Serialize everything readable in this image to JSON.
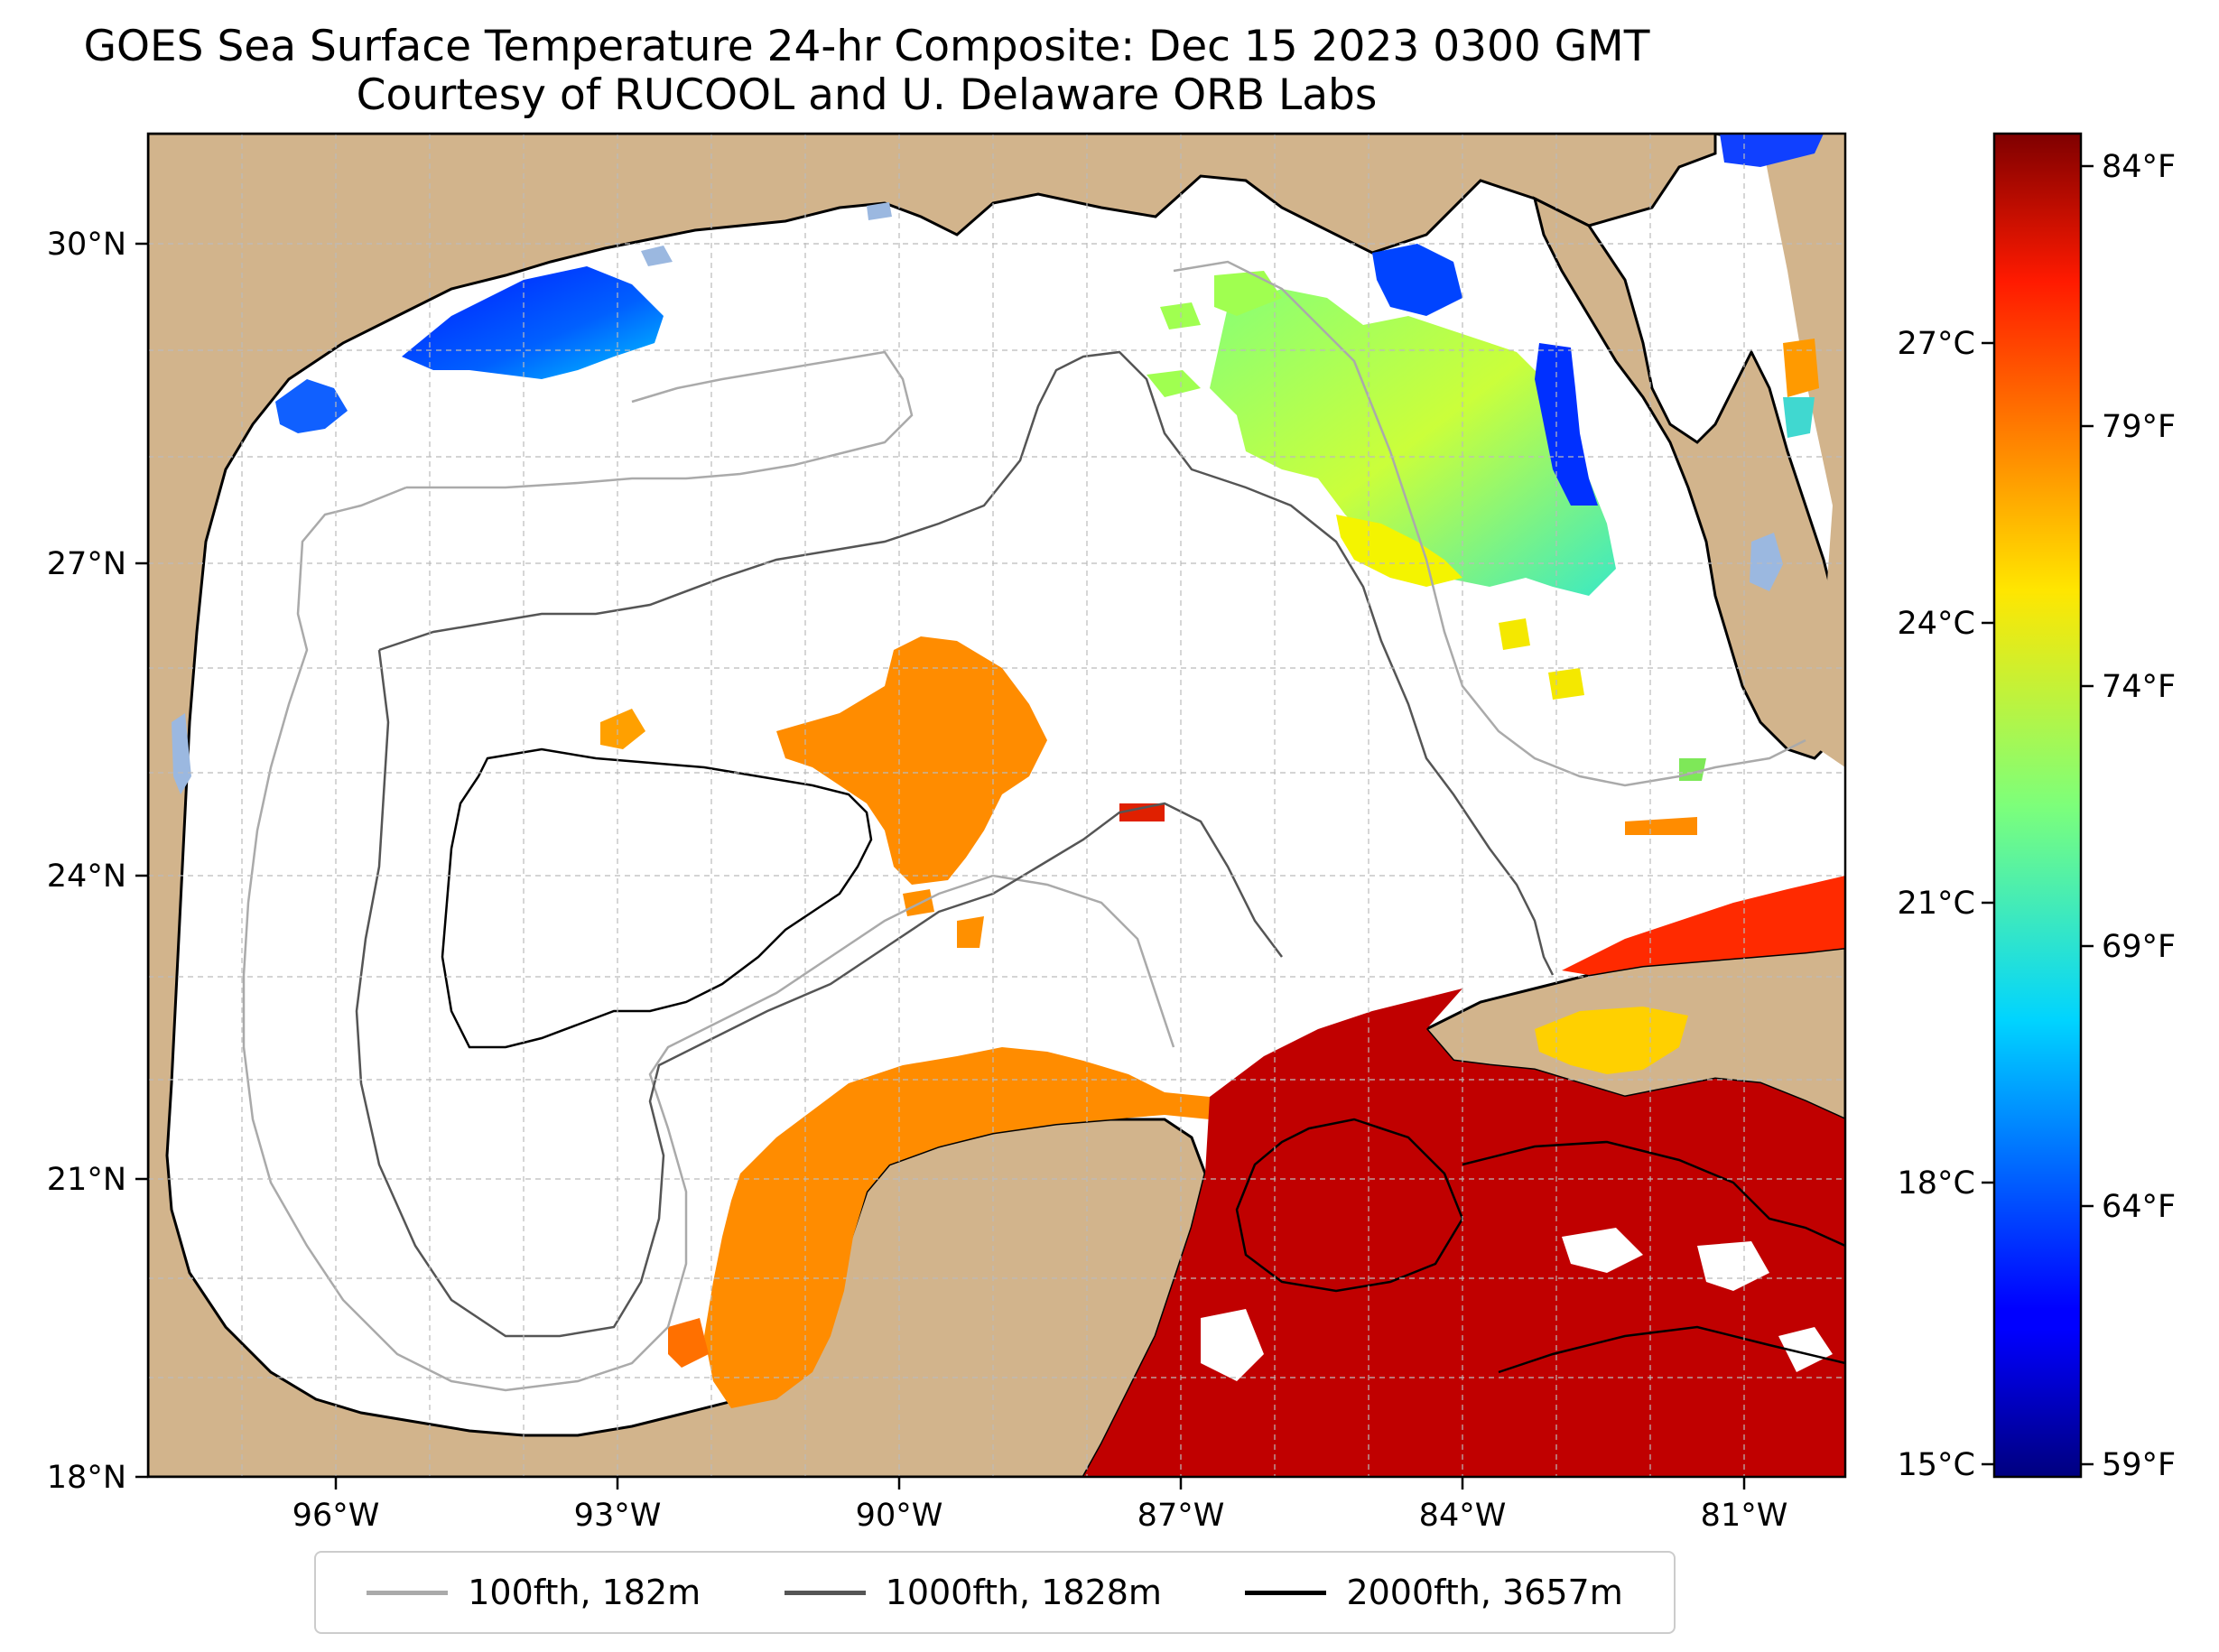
{
  "title": "GOES Sea Surface Temperature 24-hr Composite: Dec 15 2023 0300 GMT",
  "subtitle": "Courtesy of RUCOOL and U. Delaware ORB Labs",
  "map": {
    "region": "Gulf of Mexico",
    "lon_range": [
      -98,
      -80
    ],
    "lat_range": [
      18,
      31
    ],
    "lat_ticks": [
      {
        "value": 30,
        "label": "30°N"
      },
      {
        "value": 27,
        "label": "27°N"
      },
      {
        "value": 24,
        "label": "24°N"
      },
      {
        "value": 21,
        "label": "21°N"
      },
      {
        "value": 18,
        "label": "18°N"
      }
    ],
    "lon_ticks": [
      {
        "value": -96,
        "label": "96°W"
      },
      {
        "value": -93,
        "label": "93°W"
      },
      {
        "value": -90,
        "label": "90°W"
      },
      {
        "value": -87,
        "label": "87°W"
      },
      {
        "value": -84,
        "label": "84°W"
      },
      {
        "value": -81,
        "label": "81°W"
      }
    ],
    "gridlines": true,
    "land_color": "#d2b48c",
    "lake_color": "#9bb8e0"
  },
  "colorbar": {
    "celsius_ticks": [
      {
        "value": 27,
        "label": "27°C"
      },
      {
        "value": 24,
        "label": "24°C"
      },
      {
        "value": 21,
        "label": "21°C"
      },
      {
        "value": 18,
        "label": "18°C"
      },
      {
        "value": 15,
        "label": "15°C"
      }
    ],
    "fahrenheit_ticks": [
      {
        "value": 84,
        "label": "84°F"
      },
      {
        "value": 79,
        "label": "79°F"
      },
      {
        "value": 74,
        "label": "74°F"
      },
      {
        "value": 69,
        "label": "69°F"
      },
      {
        "value": 64,
        "label": "64°F"
      },
      {
        "value": 59,
        "label": "59°F"
      }
    ],
    "colormap": "jet"
  },
  "legend": [
    {
      "label": "100fth, 182m",
      "color": "#aaaaaa"
    },
    {
      "label": "1000fth, 1828m",
      "color": "#555555"
    },
    {
      "label": "2000fth, 3657m",
      "color": "#000000"
    }
  ]
}
